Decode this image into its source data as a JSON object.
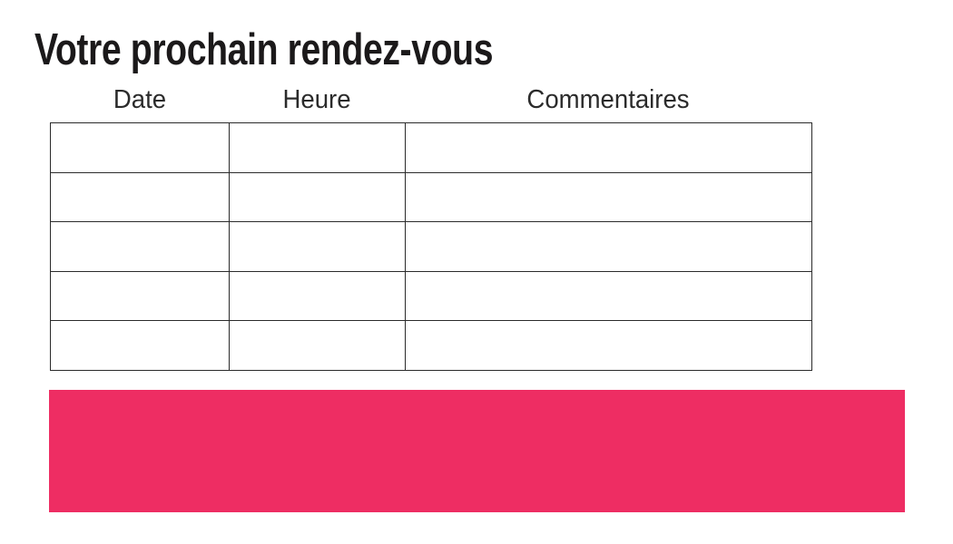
{
  "page": {
    "title": "Votre prochain rendez-vous"
  },
  "table": {
    "headers": [
      "Date",
      "Heure",
      "Commentaires"
    ],
    "rows": [
      [
        "",
        "",
        ""
      ],
      [
        "",
        "",
        ""
      ],
      [
        "",
        "",
        ""
      ],
      [
        "",
        "",
        ""
      ],
      [
        "",
        "",
        ""
      ]
    ]
  },
  "banner": {
    "label": "",
    "color": "#EE2D63"
  },
  "colors": {
    "accent_pink": "#EE2D63",
    "table_border": "#2B2B2B",
    "title_text": "#1B191A",
    "header_text": "#2B2B2B",
    "background": "#FFFFFF"
  }
}
